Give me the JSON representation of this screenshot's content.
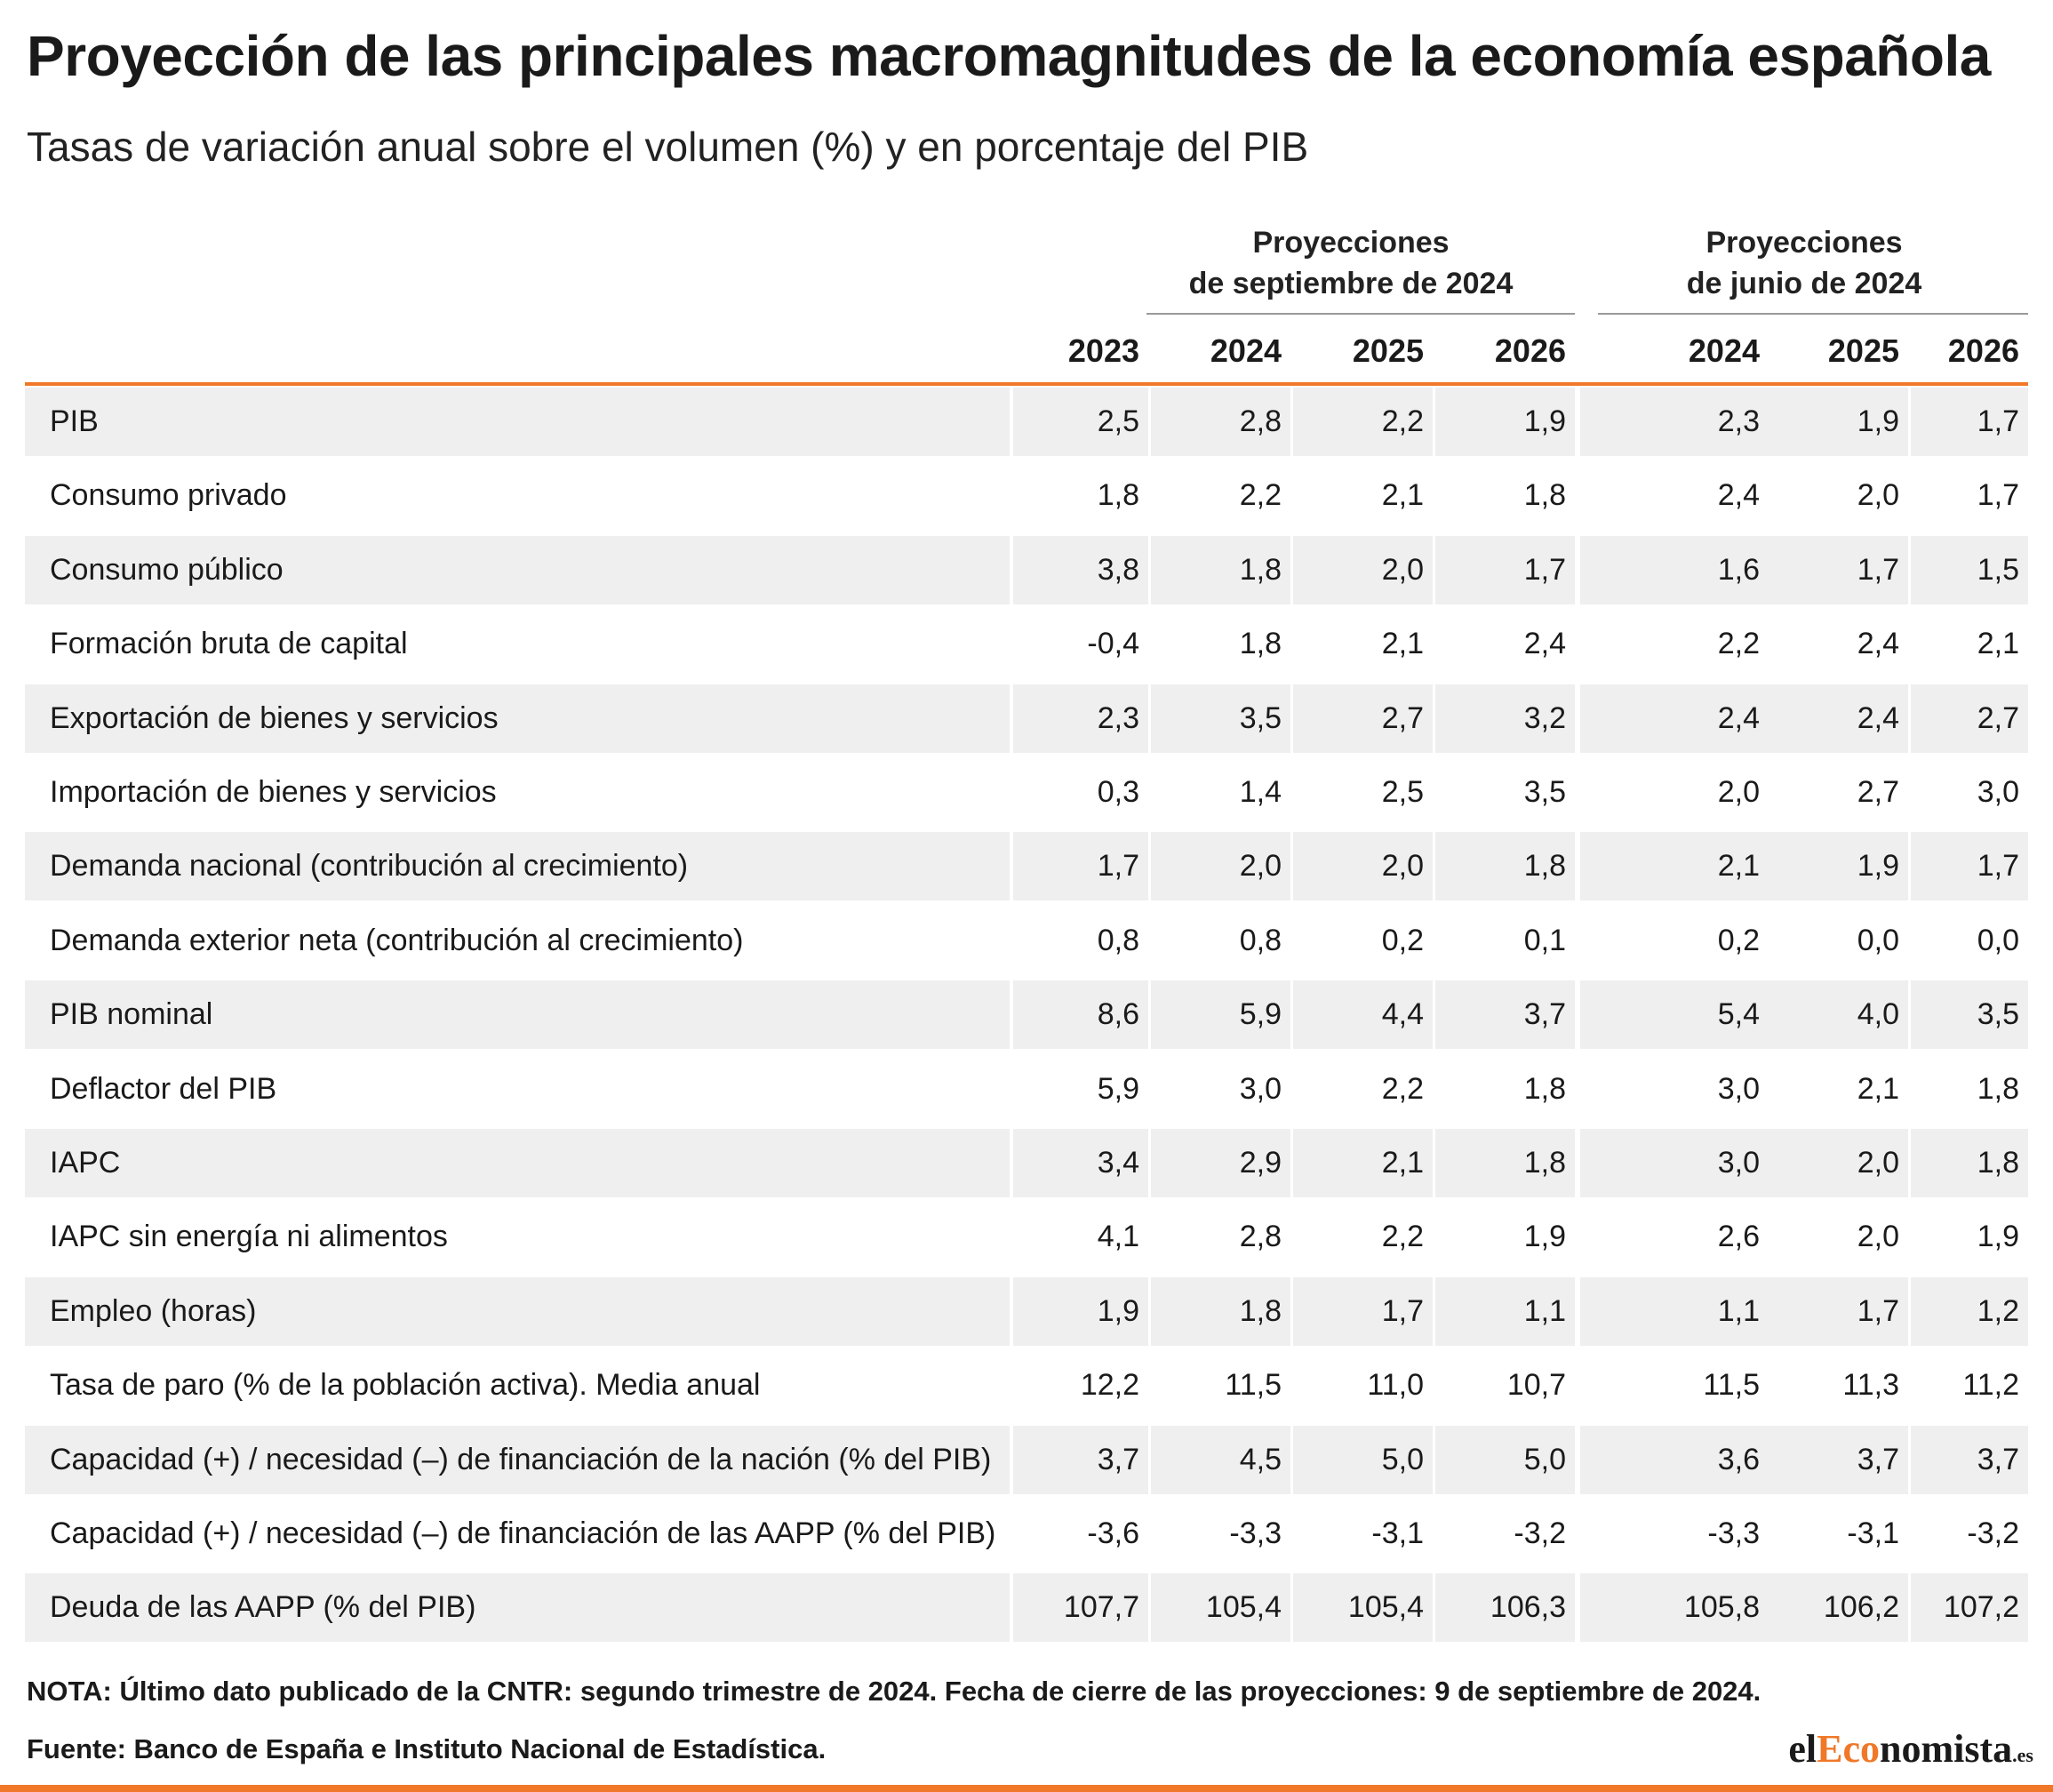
{
  "title": "Proyección de las principales macromagnitudes de la economía española",
  "subtitle": "Tasas de variación anual sobre el volumen (%) y en porcentaje del PIB",
  "groups": [
    {
      "line1": "Proyecciones",
      "line2": "de septiembre de 2024"
    },
    {
      "line1": "Proyecciones",
      "line2": "de junio de 2024"
    }
  ],
  "years": [
    "2023",
    "2024",
    "2025",
    "2026",
    "2024",
    "2025",
    "2026"
  ],
  "chart_data": {
    "type": "table",
    "columns": [
      "2023",
      "2024",
      "2025",
      "2026",
      "2024",
      "2025",
      "2026"
    ],
    "rows": [
      {
        "label": "PIB",
        "values": [
          "2,5",
          "2,8",
          "2,2",
          "1,9",
          "2,3",
          "1,9",
          "1,7"
        ]
      },
      {
        "label": "Consumo privado",
        "values": [
          "1,8",
          "2,2",
          "2,1",
          "1,8",
          "2,4",
          "2,0",
          "1,7"
        ]
      },
      {
        "label": "Consumo público",
        "values": [
          "3,8",
          "1,8",
          "2,0",
          "1,7",
          "1,6",
          "1,7",
          "1,5"
        ]
      },
      {
        "label": "Formación bruta de capital",
        "values": [
          "-0,4",
          "1,8",
          "2,1",
          "2,4",
          "2,2",
          "2,4",
          "2,1"
        ]
      },
      {
        "label": "Exportación de bienes y servicios",
        "values": [
          "2,3",
          "3,5",
          "2,7",
          "3,2",
          "2,4",
          "2,4",
          "2,7"
        ]
      },
      {
        "label": "Importación de bienes y servicios",
        "values": [
          "0,3",
          "1,4",
          "2,5",
          "3,5",
          "2,0",
          "2,7",
          "3,0"
        ]
      },
      {
        "label": "Demanda nacional (contribución al crecimiento)",
        "values": [
          "1,7",
          "2,0",
          "2,0",
          "1,8",
          "2,1",
          "1,9",
          "1,7"
        ]
      },
      {
        "label": "Demanda exterior neta (contribución al crecimiento)",
        "values": [
          "0,8",
          "0,8",
          "0,2",
          "0,1",
          "0,2",
          "0,0",
          "0,0"
        ]
      },
      {
        "label": "PIB nominal",
        "values": [
          "8,6",
          "5,9",
          "4,4",
          "3,7",
          "5,4",
          "4,0",
          "3,5"
        ]
      },
      {
        "label": "Deflactor del PIB",
        "values": [
          "5,9",
          "3,0",
          "2,2",
          "1,8",
          "3,0",
          "2,1",
          "1,8"
        ]
      },
      {
        "label": "IAPC",
        "values": [
          "3,4",
          "2,9",
          "2,1",
          "1,8",
          "3,0",
          "2,0",
          "1,8"
        ]
      },
      {
        "label": "IAPC sin energía ni alimentos",
        "values": [
          "4,1",
          "2,8",
          "2,2",
          "1,9",
          "2,6",
          "2,0",
          "1,9"
        ]
      },
      {
        "label": "Empleo (horas)",
        "values": [
          "1,9",
          "1,8",
          "1,7",
          "1,1",
          "1,1",
          "1,7",
          "1,2"
        ]
      },
      {
        "label": "Tasa de paro (% de la población activa). Media anual",
        "values": [
          "12,2",
          "11,5",
          "11,0",
          "10,7",
          "11,5",
          "11,3",
          "11,2"
        ]
      },
      {
        "label": "Capacidad (+) / necesidad (–) de financiación de la nación (% del PIB)",
        "values": [
          "3,7",
          "4,5",
          "5,0",
          "5,0",
          "3,6",
          "3,7",
          "3,7"
        ]
      },
      {
        "label": "Capacidad (+) / necesidad (–) de financiación de las AAPP (% del PIB)",
        "values": [
          "-3,6",
          "-3,3",
          "-3,1",
          "-3,2",
          "-3,3",
          "-3,1",
          "-3,2"
        ]
      },
      {
        "label": "Deuda de las AAPP (% del PIB)",
        "values": [
          "107,7",
          "105,4",
          "105,4",
          "106,3",
          "105,8",
          "106,2",
          "107,2"
        ]
      }
    ]
  },
  "note": "NOTA: Último dato publicado de la CNTR: segundo trimestre de 2024. Fecha de cierre de las proyecciones: 9 de septiembre de 2024.",
  "source": "Fuente: Banco de España e Instituto Nacional de Estadística.",
  "logo": {
    "part1": "el",
    "part2": "Eco",
    "part3": "nomista",
    "part4": ".es"
  },
  "colors": {
    "accent": "#f07828",
    "shade": "#efefef",
    "rule": "#9a9a9a"
  }
}
